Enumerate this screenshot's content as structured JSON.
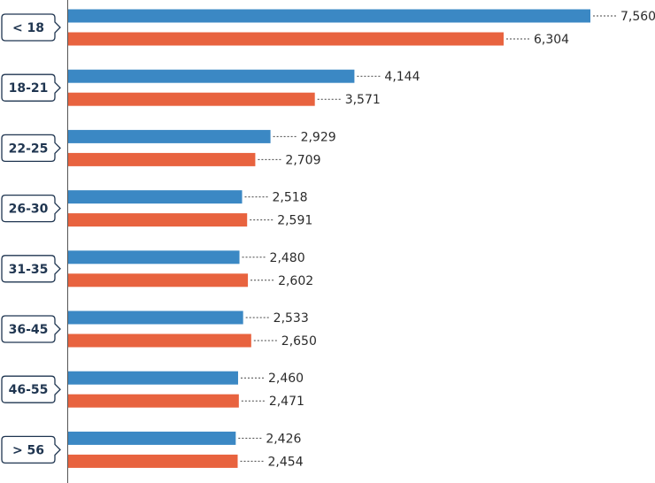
{
  "chart_data": {
    "type": "bar",
    "orientation": "horizontal",
    "categories": [
      "< 18",
      "18-21",
      "22-25",
      "26-30",
      "31-35",
      "36-45",
      "46-55",
      "> 56"
    ],
    "series": [
      {
        "color": "#3b88c4",
        "values": [
          7560,
          4144,
          2929,
          2518,
          2480,
          2533,
          2460,
          2426
        ],
        "value_labels": [
          "7,560",
          "4,144",
          "2,929",
          "2,518",
          "2,480",
          "2,533",
          "2,460",
          "2,426"
        ]
      },
      {
        "color": "#e8633f",
        "values": [
          6304,
          3571,
          2709,
          2591,
          2602,
          2650,
          2471,
          2454
        ],
        "value_labels": [
          "6,304",
          "3,571",
          "2,709",
          "2,591",
          "2,602",
          "2,650",
          "2,471",
          "2,454"
        ]
      }
    ]
  }
}
